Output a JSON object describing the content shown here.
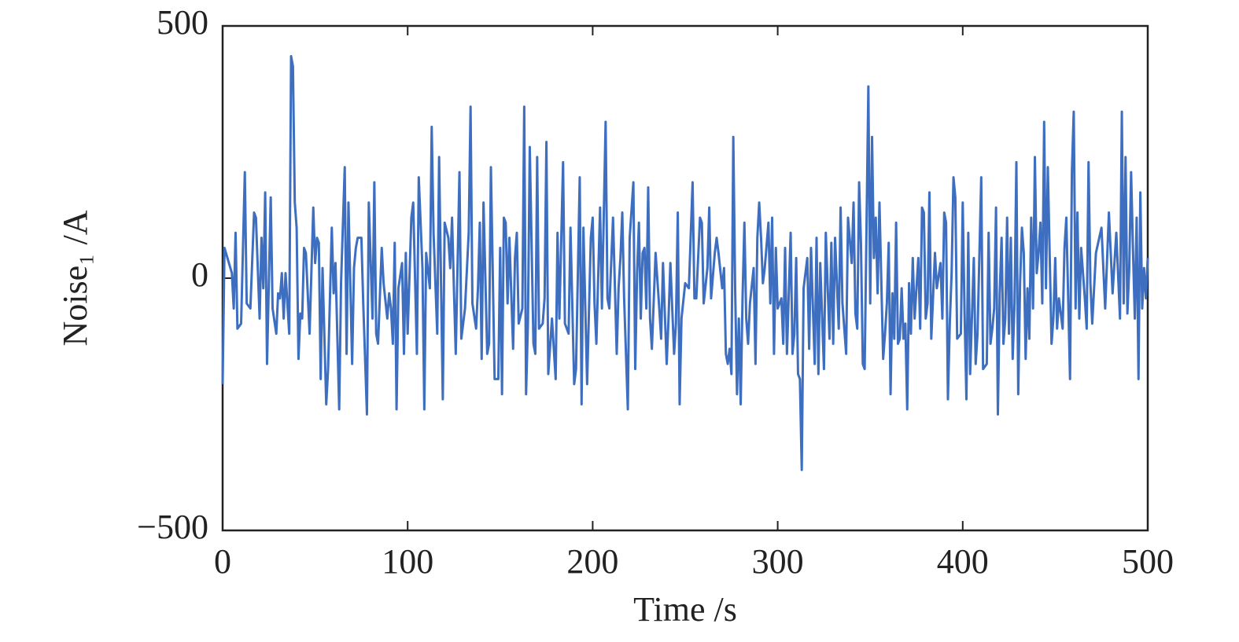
{
  "chart_data": {
    "type": "line",
    "xlabel": "Time /s",
    "ylabel": "Noise₁ /A",
    "xlim": [
      0,
      500
    ],
    "xticks": [
      0,
      100,
      200,
      300,
      400,
      500
    ],
    "ylim": [
      -500,
      500
    ],
    "yticks": [
      {
        "value": -500,
        "label": "−500"
      },
      0,
      500
    ],
    "grid": false,
    "x": [
      0,
      1,
      5,
      6,
      7,
      8,
      10,
      12,
      13,
      15,
      17,
      18,
      20,
      21,
      22,
      23,
      24,
      26,
      27,
      29,
      30,
      31,
      32,
      33,
      34,
      36,
      37,
      38,
      39,
      40,
      41,
      42,
      43,
      44,
      45,
      47,
      49,
      50,
      51,
      52,
      53,
      54,
      56,
      57,
      59,
      60,
      61,
      63,
      64,
      66,
      67,
      68,
      70,
      71,
      72,
      73,
      75,
      76,
      78,
      79,
      81,
      82,
      83,
      84,
      86,
      87,
      89,
      90,
      91,
      92,
      93,
      94,
      95,
      97,
      98,
      99,
      100,
      102,
      103,
      105,
      106,
      108,
      109,
      110,
      112,
      113,
      114,
      116,
      117,
      119,
      120,
      122,
      123,
      124,
      125,
      126,
      127,
      128,
      129,
      131,
      133,
      134,
      135,
      137,
      138,
      139,
      140,
      141,
      143,
      144,
      145,
      147,
      149,
      150,
      151,
      152,
      153,
      154,
      155,
      157,
      158,
      159,
      160,
      162,
      163,
      164,
      165,
      166,
      168,
      169,
      170,
      171,
      173,
      174,
      175,
      176,
      178,
      180,
      181,
      182,
      184,
      185,
      187,
      188,
      190,
      191,
      193,
      194,
      195,
      197,
      199,
      200,
      201,
      202,
      204,
      205,
      207,
      208,
      209,
      211,
      213,
      214,
      215,
      216,
      217,
      219,
      220,
      222,
      223,
      224,
      225,
      226,
      227,
      228,
      229,
      230,
      231,
      232,
      234,
      236,
      237,
      238,
      240,
      241,
      242,
      244,
      245,
      246,
      247,
      248,
      250,
      252,
      254,
      255,
      256,
      258,
      259,
      260,
      262,
      263,
      264,
      266,
      267,
      268,
      270,
      271,
      272,
      273,
      274,
      275,
      276,
      277,
      278,
      279,
      280,
      281,
      282,
      283,
      284,
      285,
      287,
      288,
      289,
      290,
      291,
      292,
      293,
      295,
      296,
      297,
      298,
      299,
      300,
      302,
      303,
      304,
      305,
      307,
      308,
      309,
      310,
      311,
      312,
      313,
      314,
      316,
      317,
      318,
      320,
      321,
      322,
      323,
      325,
      326,
      328,
      329,
      330,
      331,
      333,
      334,
      335,
      337,
      338,
      340,
      341,
      342,
      343,
      344,
      345,
      346,
      347,
      349,
      350,
      351,
      352,
      353,
      354,
      355,
      357,
      358,
      359,
      360,
      361,
      362,
      363,
      364,
      365,
      366,
      367,
      368,
      369,
      370,
      371,
      372,
      373,
      374,
      376,
      377,
      378,
      379,
      380,
      381,
      382,
      383,
      385,
      386,
      388,
      389,
      390,
      391,
      392,
      393,
      394,
      395,
      396,
      397,
      399,
      400,
      401,
      402,
      403,
      404,
      406,
      407,
      408,
      410,
      411,
      413,
      414,
      415,
      416,
      417,
      418,
      419,
      420,
      421,
      422,
      423,
      424,
      425,
      426,
      427,
      428,
      429,
      430,
      431,
      432,
      433,
      434,
      435,
      436,
      437,
      438,
      439,
      440,
      441,
      442,
      443,
      444,
      445,
      446,
      448,
      449,
      450,
      451,
      452,
      454,
      455,
      456,
      458,
      459,
      460,
      461,
      462,
      463,
      464,
      466,
      467,
      468,
      469,
      470,
      471,
      472,
      475,
      477,
      479,
      481,
      483,
      485,
      486,
      487,
      488,
      489,
      490,
      491,
      492,
      493,
      494,
      495,
      496,
      497,
      498,
      499,
      500
    ],
    "series": [
      {
        "name": "Noise",
        "color": "#3d6ebf",
        "values": [
          -210,
          60,
          10,
          -60,
          90,
          -100,
          -90,
          210,
          -50,
          -60,
          130,
          120,
          -80,
          80,
          -20,
          170,
          -170,
          160,
          -60,
          -110,
          -30,
          -40,
          10,
          -80,
          10,
          -110,
          440,
          420,
          150,
          100,
          -160,
          -70,
          -80,
          60,
          50,
          -110,
          140,
          30,
          80,
          70,
          -200,
          20,
          -250,
          -180,
          100,
          -30,
          30,
          -260,
          -10,
          220,
          -150,
          150,
          -170,
          20,
          60,
          80,
          80,
          -50,
          -270,
          150,
          -80,
          190,
          -110,
          -130,
          60,
          -10,
          -80,
          -30,
          -60,
          -130,
          70,
          -260,
          -20,
          30,
          -150,
          50,
          -110,
          120,
          150,
          -150,
          200,
          20,
          -260,
          50,
          -20,
          300,
          90,
          -110,
          240,
          -240,
          110,
          80,
          20,
          120,
          -20,
          -150,
          30,
          210,
          -120,
          -60,
          90,
          340,
          -50,
          -100,
          -20,
          110,
          -160,
          150,
          -150,
          -130,
          220,
          -200,
          -200,
          60,
          -230,
          120,
          110,
          -50,
          80,
          -140,
          40,
          90,
          -90,
          -60,
          340,
          -230,
          -90,
          260,
          -130,
          -150,
          240,
          -100,
          -90,
          -40,
          270,
          -190,
          -80,
          -200,
          90,
          -80,
          230,
          -90,
          -110,
          100,
          -210,
          -180,
          200,
          -250,
          100,
          -210,
          80,
          120,
          -50,
          -130,
          140,
          -60,
          310,
          -40,
          -60,
          120,
          -150,
          -20,
          40,
          130,
          -40,
          -260,
          80,
          190,
          -180,
          10,
          110,
          -80,
          50,
          60,
          -60,
          180,
          -80,
          -140,
          50,
          -60,
          -120,
          30,
          -170,
          -80,
          30,
          -150,
          -90,
          130,
          -250,
          -80,
          -10,
          -20,
          190,
          -40,
          -40,
          120,
          110,
          -50,
          20,
          140,
          -40,
          50,
          80,
          50,
          -20,
          20,
          -150,
          -170,
          -140,
          -190,
          280,
          -20,
          -230,
          -80,
          -250,
          -40,
          110,
          -80,
          -130,
          -50,
          20,
          -170,
          80,
          150,
          80,
          -10,
          20,
          110,
          -50,
          120,
          -150,
          60,
          -60,
          -40,
          -130,
          60,
          -150,
          90,
          -150,
          -110,
          40,
          -190,
          -200,
          -380,
          -20,
          40,
          -140,
          60,
          -170,
          80,
          -190,
          30,
          -180,
          90,
          -120,
          70,
          -130,
          80,
          -100,
          140,
          -50,
          -150,
          120,
          30,
          150,
          -70,
          -100,
          190,
          70,
          -170,
          -180,
          380,
          -50,
          280,
          40,
          120,
          -30,
          150,
          -160,
          -110,
          -50,
          70,
          -230,
          -30,
          -120,
          110,
          -130,
          -120,
          -20,
          -120,
          -90,
          -260,
          -10,
          -110,
          40,
          -80,
          40,
          -100,
          140,
          130,
          -80,
          -50,
          170,
          -120,
          50,
          -20,
          30,
          -80,
          130,
          110,
          -240,
          -90,
          10,
          200,
          160,
          -120,
          -110,
          150,
          -70,
          -240,
          90,
          -190,
          40,
          -170,
          -110,
          200,
          -180,
          -170,
          90,
          -130,
          -100,
          -60,
          140,
          -270,
          -30,
          80,
          -130,
          -80,
          120,
          -110,
          80,
          -160,
          -50,
          230,
          -230,
          -10,
          100,
          50,
          -160,
          -20,
          -120,
          120,
          -60,
          240,
          10,
          50,
          110,
          -50,
          310,
          -20,
          220,
          -130,
          -80,
          40,
          -100,
          -40,
          -100,
          60,
          120,
          -200,
          210,
          330,
          -60,
          130,
          -80,
          60,
          -40,
          -100,
          230,
          -10,
          -90,
          -20,
          50,
          100,
          -60,
          130,
          -30,
          90,
          -80,
          330,
          -50,
          240,
          -70,
          20,
          210,
          60,
          -80,
          120,
          -200,
          170,
          -60,
          20,
          -40,
          40
        ]
      }
    ]
  }
}
